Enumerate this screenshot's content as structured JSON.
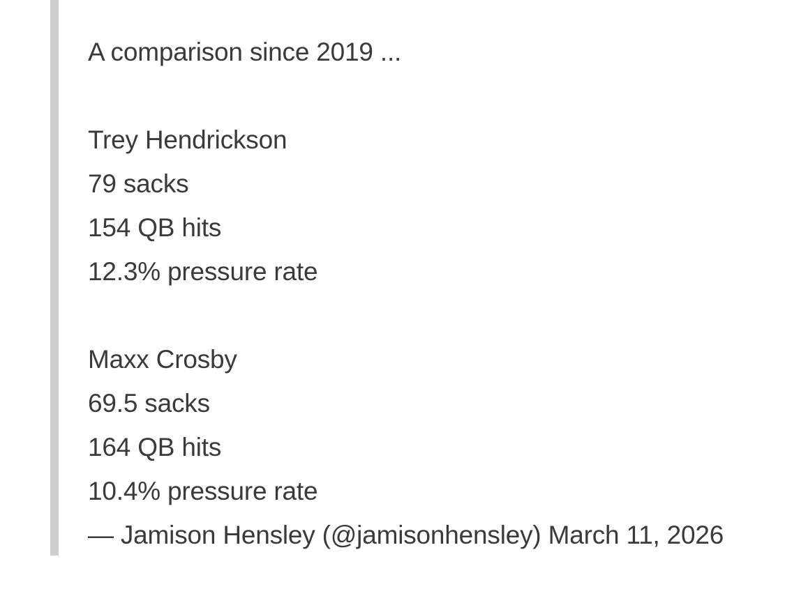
{
  "quote": {
    "intro": "A comparison since 2019 ...",
    "players": [
      {
        "name": "Trey Hendrickson",
        "sacks": "79 sacks",
        "qb_hits": "154 QB hits",
        "pressure_rate": "12.3% pressure rate"
      },
      {
        "name": "Maxx Crosby",
        "sacks": "69.5 sacks",
        "qb_hits": "164 QB hits",
        "pressure_rate": "10.4% pressure rate"
      }
    ],
    "attribution": "— Jamison Hensley (@jamisonhensley) March 11, 2026"
  }
}
